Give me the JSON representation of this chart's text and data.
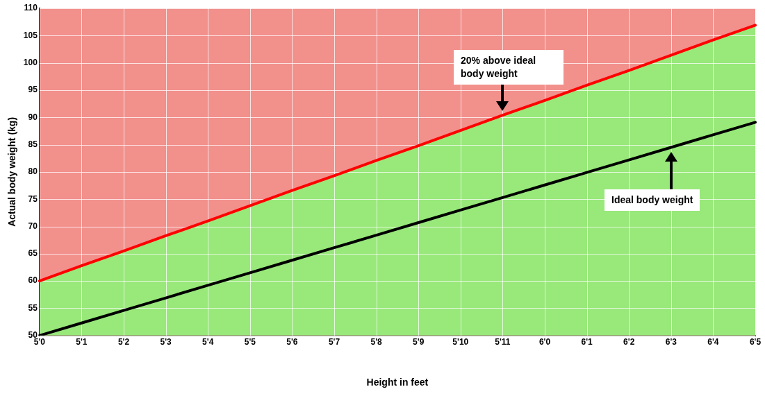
{
  "chart_data": {
    "type": "line",
    "xlabel": "Height in feet",
    "ylabel": "Actual body weight (kg)",
    "categories": [
      "5'0",
      "5'1",
      "5'2",
      "5'3",
      "5'4",
      "5'5",
      "5'6",
      "5'7",
      "5'8",
      "5'9",
      "5'10",
      "5'11",
      "6'0",
      "6'1",
      "6'2",
      "6'3",
      "6'4",
      "6'5"
    ],
    "series": [
      {
        "type": "area",
        "color": "#f2908c",
        "values": [
          110,
          110,
          110,
          110,
          110,
          110,
          110,
          110,
          110,
          110,
          110,
          110,
          110,
          110,
          110,
          110,
          110,
          110
        ]
      },
      {
        "type": "area",
        "color": "#98e87a",
        "values": [
          60,
          62.8,
          65.5,
          68.3,
          71,
          73.8,
          76.6,
          79.3,
          82.1,
          84.8,
          87.6,
          90.4,
          93.1,
          95.9,
          98.6,
          101.4,
          104.2,
          106.9
        ]
      },
      {
        "type": "line",
        "color": "#ff0000",
        "values": [
          60,
          62.8,
          65.5,
          68.3,
          71,
          73.8,
          76.6,
          79.3,
          82.1,
          84.8,
          87.6,
          90.4,
          93.1,
          95.9,
          98.6,
          101.4,
          104.2,
          106.9
        ]
      },
      {
        "type": "line",
        "color": "#000000",
        "values": [
          50,
          52.3,
          54.6,
          56.9,
          59.2,
          61.5,
          63.8,
          66.1,
          68.4,
          70.7,
          73,
          75.3,
          77.6,
          79.9,
          82.2,
          84.5,
          86.8,
          89.1
        ]
      }
    ],
    "ylim": [
      50,
      110
    ],
    "yticks": [
      50,
      55,
      60,
      65,
      70,
      75,
      80,
      85,
      90,
      95,
      100,
      105,
      110
    ],
    "grid": true,
    "legend": false,
    "marker": "none",
    "line_style": "solid",
    "annotations": [
      "20% above ideal body weight",
      "Ideal body weight"
    ]
  }
}
